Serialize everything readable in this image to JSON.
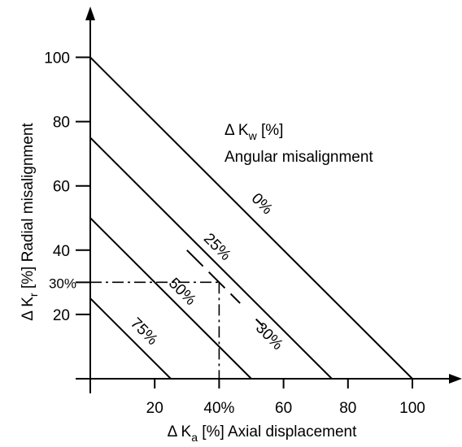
{
  "chart_data": {
    "type": "line",
    "x_axis": {
      "label_symbol": "Δ K",
      "label_subscript": "a",
      "label_rest": " [%]  Axial displacement",
      "range": [
        0,
        110
      ],
      "ticks": [
        {
          "value": 20,
          "label": "20"
        },
        {
          "value": 40,
          "label": "40%"
        },
        {
          "value": 60,
          "label": "60"
        },
        {
          "value": 80,
          "label": "80"
        },
        {
          "value": 100,
          "label": "100"
        }
      ]
    },
    "y_axis": {
      "label_symbol": "Δ K",
      "label_subscript": "r",
      "label_rest": " [%]  Radial misalignment",
      "range": [
        0,
        110
      ],
      "ticks": [
        {
          "value": 20,
          "label": "20"
        },
        {
          "value": 30,
          "label": "30%"
        },
        {
          "value": 40,
          "label": "40"
        },
        {
          "value": 60,
          "label": "60"
        },
        {
          "value": 80,
          "label": "80"
        },
        {
          "value": 100,
          "label": "100"
        }
      ]
    },
    "legend": {
      "line1_symbol": "Δ K",
      "line1_subscript": "w",
      "line1_rest": "  [%]",
      "line2": "Angular misalignment"
    },
    "series": [
      {
        "name": "0%",
        "x": [
          0,
          100
        ],
        "y": [
          100,
          0
        ],
        "style": "solid"
      },
      {
        "name": "25%",
        "x": [
          0,
          75
        ],
        "y": [
          75,
          0
        ],
        "style": "solid"
      },
      {
        "name": "50%",
        "x": [
          0,
          50
        ],
        "y": [
          50,
          0
        ],
        "style": "solid"
      },
      {
        "name": "75%",
        "x": [
          0,
          25
        ],
        "y": [
          25,
          0
        ],
        "style": "solid"
      },
      {
        "name": "30%",
        "x": [
          30,
          57.5
        ],
        "y": [
          40,
          12.5
        ],
        "style": "dashed"
      }
    ],
    "guide": {
      "x": 40,
      "y": 30,
      "style": "dash-dot"
    },
    "grid": false
  }
}
